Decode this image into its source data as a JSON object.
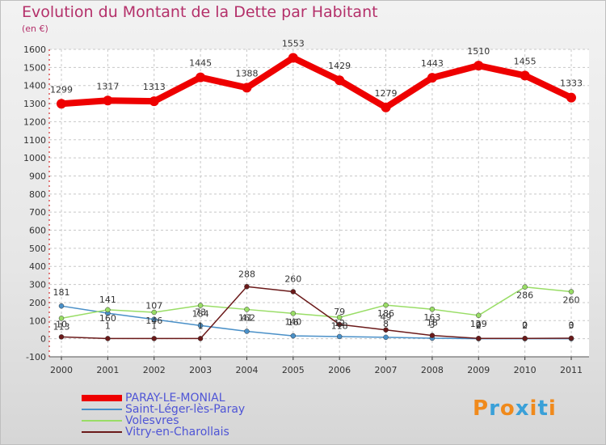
{
  "chart_data": {
    "type": "line",
    "title": "Evolution du Montant de la Dette par Habitant",
    "unit_label": "(en €)",
    "x": [
      "2000",
      "2001",
      "2002",
      "2003",
      "2004",
      "2005",
      "2006",
      "2007",
      "2008",
      "2009",
      "2010",
      "2011"
    ],
    "ylim": [
      -100,
      1600
    ],
    "yticks": [
      -100,
      0,
      100,
      200,
      300,
      400,
      500,
      600,
      700,
      800,
      900,
      1000,
      1100,
      1200,
      1300,
      1400,
      1500,
      1600
    ],
    "grid": true,
    "series": [
      {
        "name": "PARAY-LE-MONIAL",
        "color": "#ee0000",
        "values": [
          1299,
          1317,
          1313,
          1445,
          1388,
          1553,
          1429,
          1279,
          1443,
          1510,
          1455,
          1333
        ]
      },
      {
        "name": "Saint-Léger-lès-Paray",
        "color": "#4a90c8",
        "values": [
          181,
          141,
          107,
          73,
          41,
          16,
          12,
          8,
          3,
          0,
          0,
          0
        ]
      },
      {
        "name": "Volesvres",
        "color": "#99dd66",
        "values": [
          113,
          160,
          146,
          184,
          162,
          140,
          118,
          186,
          163,
          129,
          286,
          260
        ]
      },
      {
        "name": "Vitry-en-Charollais",
        "color": "#6b1a1a",
        "values": [
          10,
          1,
          1,
          1,
          288,
          260,
          79,
          49,
          18,
          2,
          2,
          3
        ]
      }
    ]
  },
  "logo": [
    "P",
    "r",
    "o",
    "x",
    "i",
    "t",
    "i"
  ]
}
